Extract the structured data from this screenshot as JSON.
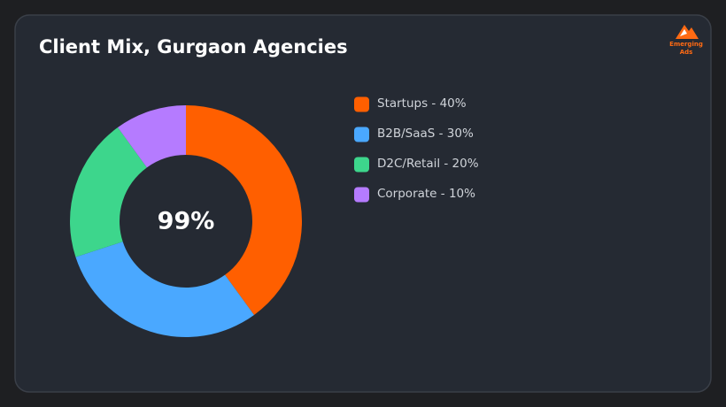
{
  "chart_data": {
    "type": "donut",
    "title": "Client Mix, Gurgaon Agencies",
    "categories": [
      "Startups - 40%",
      "B2B/SaaS - 30%",
      "D2C/Retail - 20%",
      "Corporate - 10%"
    ],
    "values": [
      40,
      30,
      20,
      10
    ],
    "colors": [
      "#ff5f00",
      "#4aa8ff",
      "#3dd68c",
      "#b57bff"
    ],
    "center_label": "99%",
    "logo_text": [
      "Emerging",
      "Ads"
    ]
  }
}
